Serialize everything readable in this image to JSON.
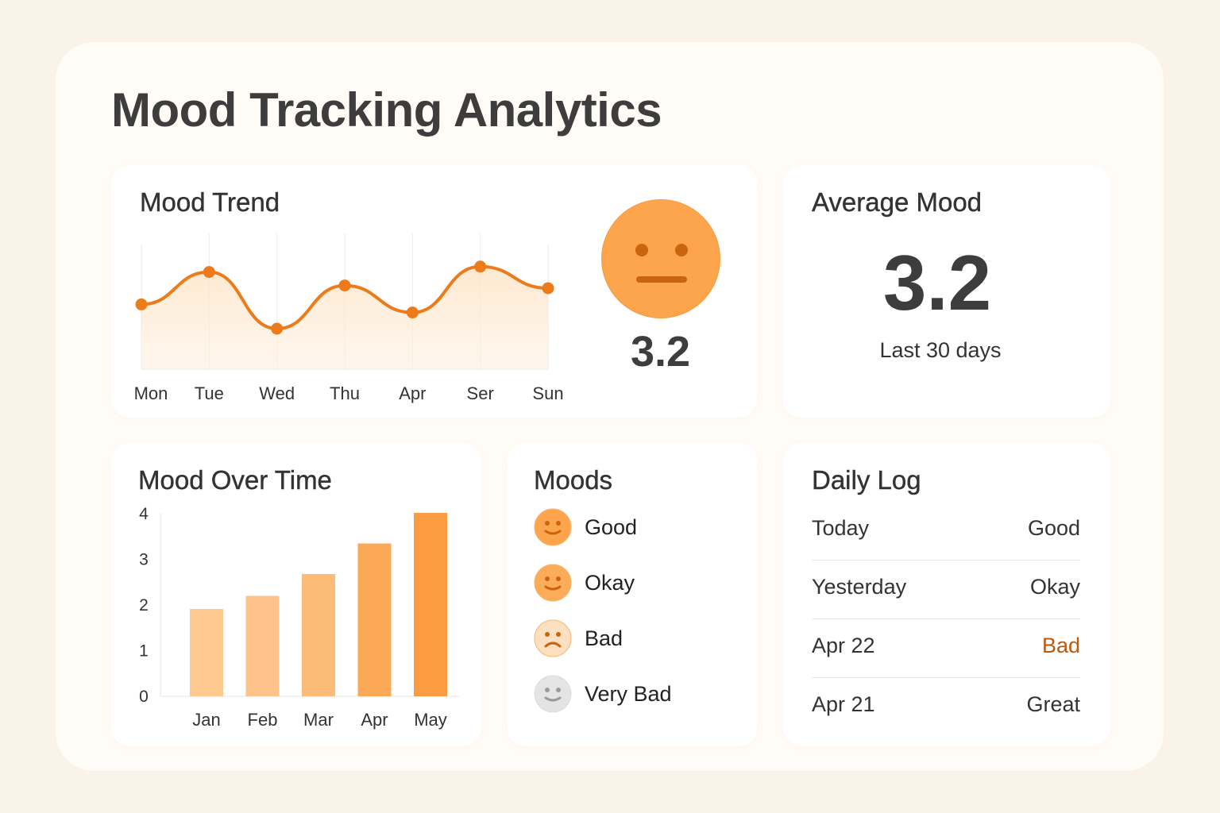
{
  "title": "Mood Tracking Analytics",
  "colors": {
    "accent": "#f0801e",
    "face": "#fca54c",
    "bad_text": "#b85a10"
  },
  "mood_trend": {
    "title": "Mood Trend",
    "face_value": "3.2",
    "face_icon": "neutral-face-icon",
    "chart_data": {
      "type": "line",
      "categories": [
        "Mon",
        "Tue",
        "Wed",
        "Thu",
        "Apr",
        "Ser",
        "Sun"
      ],
      "values": [
        2.4,
        3.6,
        1.5,
        3.1,
        2.1,
        3.8,
        3.0
      ],
      "ylim": [
        0,
        5
      ],
      "grid": "vertical"
    }
  },
  "average": {
    "title": "Average Mood",
    "value": "3.2",
    "caption": "Last 30 days"
  },
  "mood_over_time": {
    "title": "Mood Over Time",
    "chart_data": {
      "type": "bar",
      "categories": [
        "Jan",
        "Feb",
        "Mar",
        "Apr",
        "May"
      ],
      "values": [
        2.0,
        2.3,
        2.8,
        3.5,
        4.2
      ],
      "yticks": [
        "0",
        "1",
        "2",
        "3",
        "4"
      ],
      "ylim": [
        0,
        4.2
      ],
      "colors": [
        "#fdc98f",
        "#fdc38a",
        "#fdbb78",
        "#fca957",
        "#fc9c42"
      ]
    }
  },
  "moods": {
    "title": "Moods",
    "items": [
      {
        "label": "Good",
        "icon": "smile-face-icon",
        "color": "#fca54c",
        "mouth": "smile"
      },
      {
        "label": "Okay",
        "icon": "smile-face-icon",
        "color": "#fcab58",
        "mouth": "smile"
      },
      {
        "label": "Bad",
        "icon": "frown-face-icon",
        "color": "#fde0bf",
        "mouth": "frown"
      },
      {
        "label": "Very Bad",
        "icon": "gray-face-icon",
        "color": "#e4e4e4",
        "mouth": "smile"
      }
    ]
  },
  "daily_log": {
    "title": "Daily Log",
    "rows": [
      {
        "day": "Today",
        "mood": "Good"
      },
      {
        "day": "Yesterday",
        "mood": "Okay"
      },
      {
        "day": "Apr 22",
        "mood": "Bad"
      },
      {
        "day": "Apr 21",
        "mood": "Great"
      }
    ]
  }
}
